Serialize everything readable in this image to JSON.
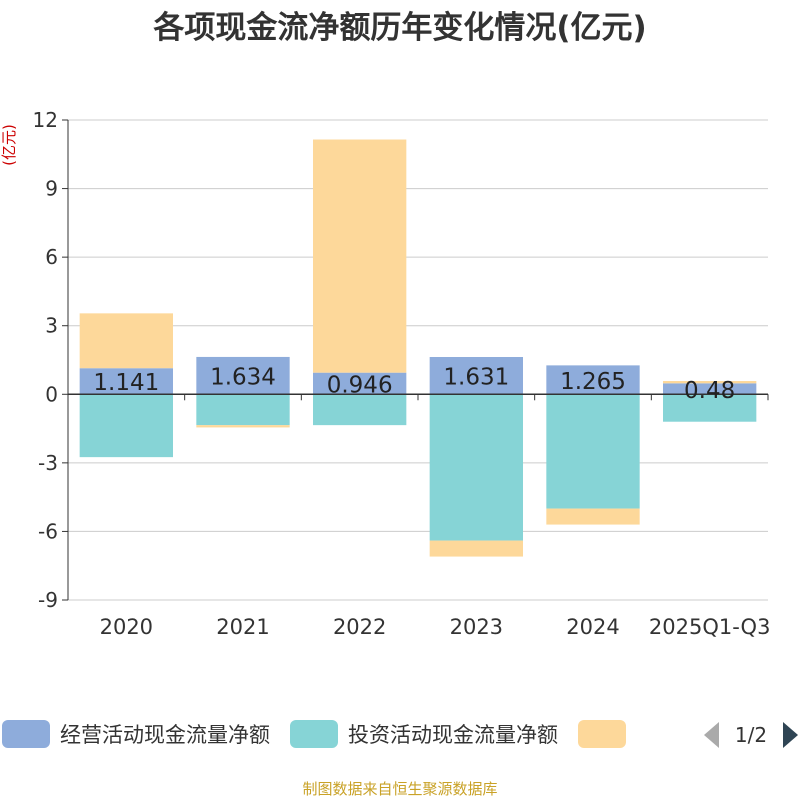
{
  "chart_data": {
    "type": "bar",
    "stacked": true,
    "title": "各项现金流净额历年变化情况(亿元)",
    "ylabel": "(亿元)",
    "xlabel": "",
    "ylim": [
      -9,
      12
    ],
    "yticks": [
      12,
      9,
      6,
      3,
      0,
      -3,
      -6,
      -9
    ],
    "categories": [
      "2020",
      "2021",
      "2022",
      "2023",
      "2024",
      "2025Q1-Q3"
    ],
    "series": [
      {
        "name": "经营活动现金流量净额",
        "color": "#8eacdb",
        "values": [
          1.141,
          1.634,
          0.946,
          1.631,
          1.265,
          0.48
        ],
        "labels": [
          "1.141",
          "1.634",
          "0.946",
          "1.631",
          "1.265",
          "0.48"
        ]
      },
      {
        "name": "投资活动现金流量净额",
        "color": "#86d4d6",
        "values": [
          -2.75,
          -1.35,
          -1.35,
          -6.4,
          -5.0,
          -1.2
        ]
      },
      {
        "name": "",
        "color": "#fdd89a",
        "values": [
          2.4,
          -0.1,
          10.2,
          -0.7,
          -0.7,
          0.1
        ]
      }
    ],
    "legend": {
      "position": "bottom",
      "page": "1/2"
    }
  },
  "source": "制图数据来自恒生聚源数据库"
}
